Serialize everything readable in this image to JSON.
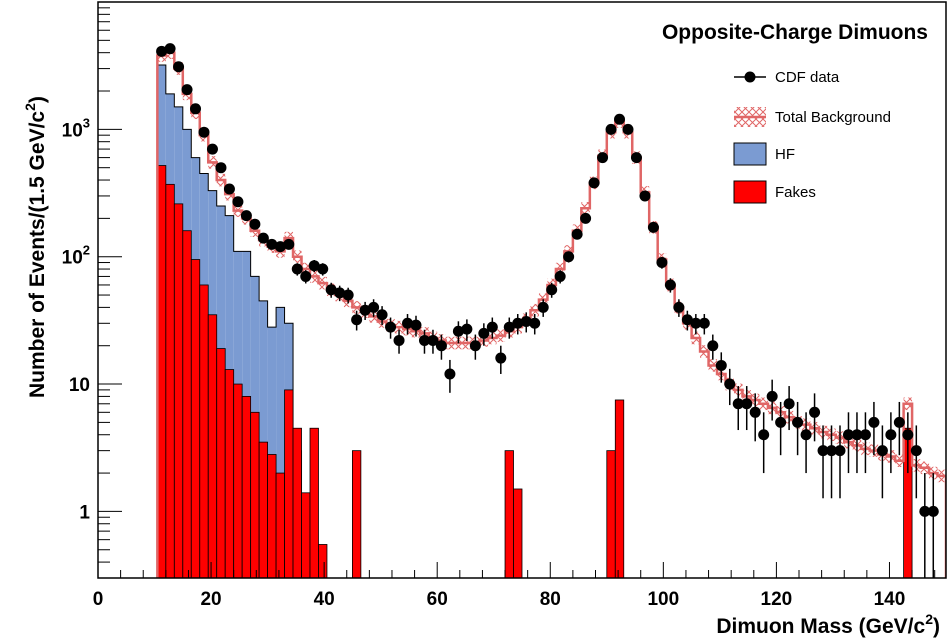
{
  "chart_data": {
    "type": "histogram",
    "title": "Opposite-Charge Dimuons",
    "xlabel": "Dimuon Mass (GeV/c",
    "xlabel_sup": "2",
    "xlabel_end": ")",
    "ylabel": "Number of Events/(1.5 GeV/c",
    "ylabel_sup": "2",
    "ylabel_end": ")",
    "xlim": [
      0,
      150
    ],
    "ylim": [
      0.3,
      10000
    ],
    "yscale": "log",
    "bin_width": 1.5,
    "x_ticks": [
      0,
      20,
      40,
      60,
      80,
      100,
      120,
      140
    ],
    "x_tick_labels": [
      "0",
      "20",
      "40",
      "60",
      "80",
      "100",
      "120",
      "140"
    ],
    "y_ticks": [
      1,
      10,
      100,
      1000
    ],
    "y_tick_labels": [
      {
        "base": "1",
        "exp": ""
      },
      {
        "base": "10",
        "exp": ""
      },
      {
        "base": "10",
        "exp": "2"
      },
      {
        "base": "10",
        "exp": "3"
      }
    ],
    "legend": {
      "position": "top-right",
      "entries": [
        {
          "label": "CDF data",
          "style": "marker"
        },
        {
          "label": "Total Background",
          "style": "hatched-line"
        },
        {
          "label": "HF",
          "style": "fill",
          "color": "#7b9bd2"
        },
        {
          "label": "Fakes",
          "style": "fill",
          "color": "#ff0000"
        }
      ]
    },
    "colors": {
      "hf_fill": "#7b9bd2",
      "fakes_fill": "#ff0000",
      "background_line": "#e06666",
      "data_marker": "#000000"
    },
    "series": [
      {
        "name": "HF",
        "style": "filled-step",
        "bins": [
          [
            10.5,
            3200
          ],
          [
            12,
            1900
          ],
          [
            13.5,
            1500
          ],
          [
            15,
            1000
          ],
          [
            16.5,
            600
          ],
          [
            18,
            450
          ],
          [
            19.5,
            330
          ],
          [
            21,
            250
          ],
          [
            22.5,
            210
          ],
          [
            24,
            110
          ],
          [
            25.5,
            110
          ],
          [
            27,
            70
          ],
          [
            28.5,
            45
          ],
          [
            30,
            28
          ],
          [
            31.5,
            40
          ],
          [
            33,
            30
          ],
          [
            34.5,
            3
          ]
        ]
      },
      {
        "name": "Fakes",
        "style": "filled-step",
        "bins": [
          [
            10.5,
            520
          ],
          [
            12,
            370
          ],
          [
            13.5,
            260
          ],
          [
            15,
            160
          ],
          [
            16.5,
            95
          ],
          [
            18,
            60
          ],
          [
            19.5,
            35
          ],
          [
            21,
            19
          ],
          [
            22.5,
            13
          ],
          [
            24,
            10
          ],
          [
            25.5,
            8
          ],
          [
            27,
            6
          ],
          [
            28.5,
            3.5
          ],
          [
            30,
            2.8
          ],
          [
            31.5,
            2.0
          ],
          [
            33,
            9
          ],
          [
            34.5,
            4.5
          ],
          [
            36,
            1.4
          ],
          [
            37.5,
            4.5
          ],
          [
            39,
            0.55
          ],
          [
            45,
            3.0
          ],
          [
            72,
            3.0
          ],
          [
            73.5,
            1.5
          ],
          [
            90,
            3.0
          ],
          [
            91.5,
            7.5
          ],
          [
            142.5,
            4.5
          ]
        ]
      },
      {
        "name": "Total Background",
        "style": "hatched-step",
        "bins": [
          [
            10.5,
            3800
          ],
          [
            12,
            4000
          ],
          [
            13.5,
            3000
          ],
          [
            15,
            1900
          ],
          [
            16.5,
            1350
          ],
          [
            18,
            900
          ],
          [
            19.5,
            550
          ],
          [
            21,
            400
          ],
          [
            22.5,
            310
          ],
          [
            24,
            230
          ],
          [
            25.5,
            200
          ],
          [
            27,
            160
          ],
          [
            28.5,
            135
          ],
          [
            30,
            120
          ],
          [
            31.5,
            110
          ],
          [
            33,
            140
          ],
          [
            34.5,
            100
          ],
          [
            36,
            80
          ],
          [
            37.5,
            70
          ],
          [
            39,
            62
          ],
          [
            40.5,
            55
          ],
          [
            42,
            50
          ],
          [
            43.5,
            45
          ],
          [
            45,
            40
          ],
          [
            46.5,
            37
          ],
          [
            48,
            34
          ],
          [
            49.5,
            31
          ],
          [
            51,
            29
          ],
          [
            52.5,
            28
          ],
          [
            54,
            27
          ],
          [
            55.5,
            26
          ],
          [
            57,
            25
          ],
          [
            58.5,
            23
          ],
          [
            60,
            22
          ],
          [
            61.5,
            21
          ],
          [
            63,
            21
          ],
          [
            64.5,
            21
          ],
          [
            66,
            21
          ],
          [
            67.5,
            22
          ],
          [
            69,
            23
          ],
          [
            70.5,
            24
          ],
          [
            72,
            26
          ],
          [
            73.5,
            28
          ],
          [
            75,
            32
          ],
          [
            76.5,
            38
          ],
          [
            78,
            46
          ],
          [
            79.5,
            60
          ],
          [
            81,
            80
          ],
          [
            82.5,
            110
          ],
          [
            84,
            160
          ],
          [
            85.5,
            240
          ],
          [
            87,
            380
          ],
          [
            88.5,
            620
          ],
          [
            90,
            950
          ],
          [
            91.5,
            1150
          ],
          [
            93,
            950
          ],
          [
            94.5,
            600
          ],
          [
            96,
            320
          ],
          [
            97.5,
            170
          ],
          [
            99,
            95
          ],
          [
            100.5,
            60
          ],
          [
            102,
            40
          ],
          [
            103.5,
            30
          ],
          [
            105,
            23
          ],
          [
            106.5,
            18
          ],
          [
            108,
            14
          ],
          [
            109.5,
            12
          ],
          [
            111,
            10
          ],
          [
            112.5,
            9
          ],
          [
            114,
            8
          ],
          [
            115.5,
            7.5
          ],
          [
            117,
            7
          ],
          [
            118.5,
            6.5
          ],
          [
            120,
            6
          ],
          [
            121.5,
            5.5
          ],
          [
            123,
            5
          ],
          [
            124.5,
            4.8
          ],
          [
            126,
            4.5
          ],
          [
            127.5,
            4.2
          ],
          [
            129,
            4
          ],
          [
            130.5,
            3.8
          ],
          [
            132,
            3.5
          ],
          [
            133.5,
            3.3
          ],
          [
            135,
            3.1
          ],
          [
            136.5,
            3.0
          ],
          [
            138,
            2.8
          ],
          [
            139.5,
            2.7
          ],
          [
            141,
            2.5
          ],
          [
            142.5,
            7
          ],
          [
            144,
            2.3
          ],
          [
            145.5,
            2.2
          ],
          [
            147,
            2.0
          ],
          [
            148.5,
            1.9
          ]
        ]
      },
      {
        "name": "CDF data",
        "style": "points",
        "points": [
          [
            11.25,
            4100
          ],
          [
            12.75,
            4300
          ],
          [
            14.25,
            3100
          ],
          [
            15.75,
            2050
          ],
          [
            17.25,
            1450
          ],
          [
            18.75,
            950
          ],
          [
            20.25,
            700
          ],
          [
            21.75,
            500
          ],
          [
            23.25,
            340
          ],
          [
            24.75,
            270
          ],
          [
            26.25,
            210
          ],
          [
            27.75,
            180
          ],
          [
            29.25,
            140
          ],
          [
            30.75,
            125
          ],
          [
            32.25,
            120
          ],
          [
            33.75,
            125
          ],
          [
            35.25,
            80
          ],
          [
            36.75,
            70
          ],
          [
            38.25,
            85
          ],
          [
            39.75,
            80
          ],
          [
            41.25,
            55
          ],
          [
            42.75,
            52
          ],
          [
            44.25,
            50
          ],
          [
            45.75,
            32
          ],
          [
            47.25,
            38
          ],
          [
            48.75,
            40
          ],
          [
            50.25,
            35
          ],
          [
            51.75,
            28
          ],
          [
            53.25,
            22
          ],
          [
            54.75,
            30
          ],
          [
            56.25,
            29
          ],
          [
            57.75,
            22
          ],
          [
            59.25,
            22
          ],
          [
            60.75,
            20
          ],
          [
            62.25,
            12
          ],
          [
            63.75,
            26
          ],
          [
            65.25,
            27
          ],
          [
            66.75,
            20
          ],
          [
            68.25,
            25
          ],
          [
            69.75,
            28
          ],
          [
            71.25,
            16
          ],
          [
            72.75,
            28
          ],
          [
            74.25,
            30
          ],
          [
            75.75,
            31
          ],
          [
            77.25,
            30
          ],
          [
            78.75,
            40
          ],
          [
            80.25,
            55
          ],
          [
            81.75,
            70
          ],
          [
            83.25,
            100
          ],
          [
            84.75,
            150
          ],
          [
            86.25,
            200
          ],
          [
            87.75,
            380
          ],
          [
            89.25,
            600
          ],
          [
            90.75,
            1000
          ],
          [
            92.25,
            1200
          ],
          [
            93.75,
            1000
          ],
          [
            95.25,
            600
          ],
          [
            96.75,
            300
          ],
          [
            98.25,
            170
          ],
          [
            99.75,
            90
          ],
          [
            101.25,
            60
          ],
          [
            102.75,
            40
          ],
          [
            104.25,
            32
          ],
          [
            105.75,
            30
          ],
          [
            107.25,
            30
          ],
          [
            108.75,
            20
          ],
          [
            110.25,
            14
          ],
          [
            111.75,
            10
          ],
          [
            113.25,
            7
          ],
          [
            114.75,
            7
          ],
          [
            116.25,
            6
          ],
          [
            117.75,
            4
          ],
          [
            119.25,
            8
          ],
          [
            120.75,
            5
          ],
          [
            122.25,
            7
          ],
          [
            123.75,
            5
          ],
          [
            125.25,
            4
          ],
          [
            126.75,
            6
          ],
          [
            128.25,
            3
          ],
          [
            129.75,
            3
          ],
          [
            131.25,
            3
          ],
          [
            132.75,
            4
          ],
          [
            134.25,
            4
          ],
          [
            135.75,
            4
          ],
          [
            137.25,
            5
          ],
          [
            138.75,
            3
          ],
          [
            140.25,
            4
          ],
          [
            141.75,
            5
          ],
          [
            143.25,
            4
          ],
          [
            144.75,
            3
          ],
          [
            146.25,
            1
          ],
          [
            147.75,
            1
          ]
        ]
      }
    ]
  }
}
